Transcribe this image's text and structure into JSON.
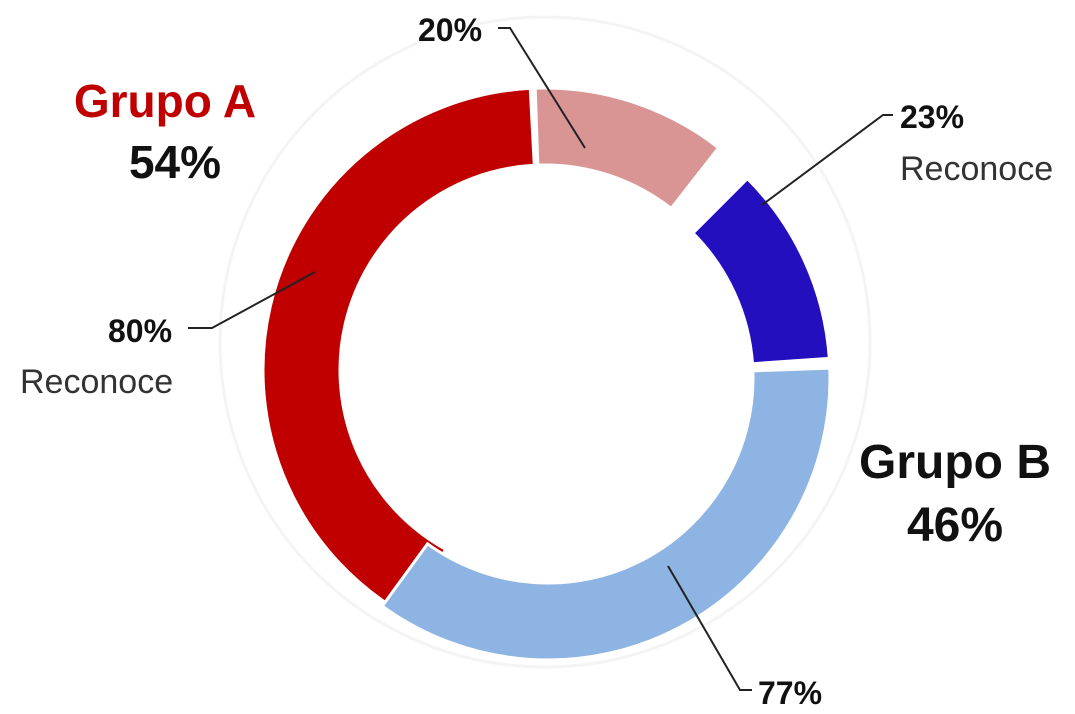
{
  "chart_data": {
    "type": "pie",
    "groups": [
      {
        "label": "Grupo A",
        "value_label": "54%",
        "value": 54,
        "color": "#c00000",
        "slices": [
          {
            "label": "Reconoce",
            "value_label": "80%",
            "value": 80,
            "color": "#c00000"
          },
          {
            "label": "",
            "value_label": "20%",
            "value": 20,
            "color": "#d99594"
          }
        ]
      },
      {
        "label": "Grupo B",
        "value_label": "46%",
        "value": 46,
        "color": "#111111",
        "slices": [
          {
            "label": "Reconoce",
            "value_label": "23%",
            "value": 23,
            "color": "#230fbe"
          },
          {
            "label": "",
            "value_label": "77%",
            "value": 77,
            "color": "#8eb4e3"
          }
        ]
      }
    ]
  }
}
